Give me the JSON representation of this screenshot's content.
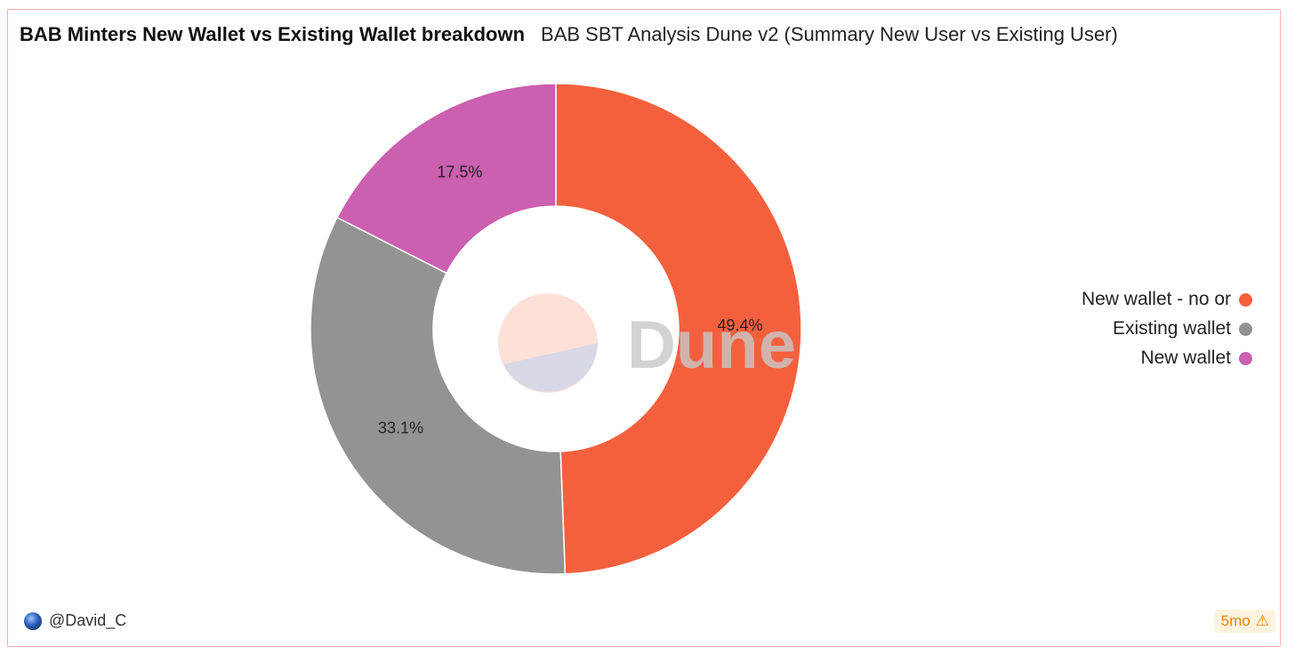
{
  "header": {
    "title": "BAB Minters New Wallet vs Existing Wallet breakdown",
    "subtitle": "BAB SBT Analysis Dune v2 (Summary New User vs Existing User)"
  },
  "chart_data": {
    "type": "pie",
    "donut": true,
    "slices": [
      {
        "name": "New wallet - no or",
        "value": 49.4,
        "label": "49.4%",
        "color": "#f4603d"
      },
      {
        "name": "Existing wallet",
        "value": 33.1,
        "label": "33.1%",
        "color": "#939393"
      },
      {
        "name": "New wallet",
        "value": 17.5,
        "label": "17.5%",
        "color": "#cb5fb0"
      }
    ],
    "legend_position": "right",
    "watermark": "Dune"
  },
  "footer": {
    "user": "@David_C",
    "age": "5mo"
  },
  "colors": {
    "border": "#f3b3a8",
    "badge_bg": "#fff3e0",
    "badge_text": "#e8820c"
  },
  "icons": {
    "avatar": "avatar-icon",
    "warning": "warning-icon"
  }
}
